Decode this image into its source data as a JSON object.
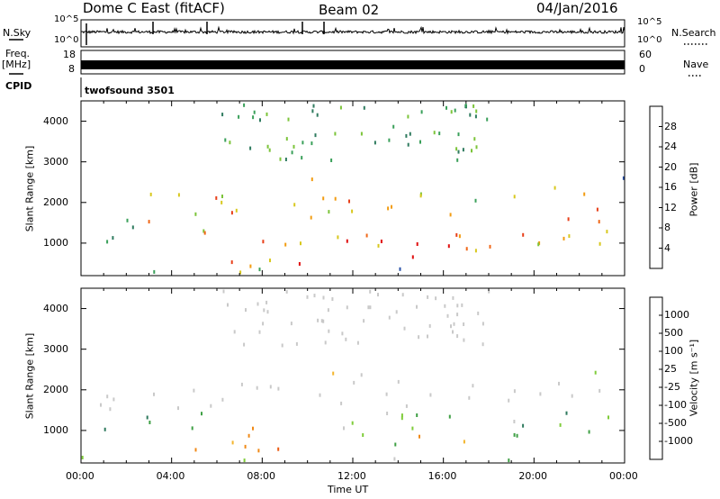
{
  "header": {
    "title": "Dome C East (fitACF)",
    "beam": "Beam 02",
    "date": "04/Jan/2016"
  },
  "status_panels": {
    "nsky_label": "N.Sky",
    "nsearch_label": "N.Search",
    "noise_ticks_left": [
      "10^5",
      "10^0"
    ],
    "noise_ticks_right": [
      "10^5",
      "10^0"
    ],
    "freq_label_line1": "Freq.",
    "freq_label_line2": "[MHz]",
    "freq_ticks": [
      "18",
      "8"
    ],
    "nave_label": "Nave",
    "nave_ticks": [
      "60",
      "0"
    ],
    "cpid_label": "CPID",
    "cpid_value": "twofsound 3501"
  },
  "colors": {
    "power_scale": [
      "#1a1ad6",
      "#2a52a8",
      "#2f7b5f",
      "#3aa05a",
      "#7cc43a",
      "#d8c81e",
      "#f29c12",
      "#f06818",
      "#e8401a",
      "#e01010"
    ],
    "velocity_scale": [
      "#2440c8",
      "#2f5a9a",
      "#2f7a5e",
      "#3fa045",
      "#7fcc3a",
      "#c9c9c9",
      "#f3b52c",
      "#f08a18",
      "#ec5c14",
      "#e21414"
    ]
  },
  "chart_data": [
    {
      "type": "heatmap",
      "name": "Power",
      "ylabel": "Slant Range [km]",
      "yticks": [
        "1000",
        "2000",
        "3000",
        "4000"
      ],
      "ylim": [
        200,
        4500
      ],
      "xlim": [
        0,
        24
      ],
      "colorbar_label": "Power [dB]",
      "colorbar_ticks": [
        "28",
        "24",
        "20",
        "16",
        "12",
        "8",
        "4"
      ],
      "colorbar_range": [
        0,
        32
      ]
    },
    {
      "type": "heatmap",
      "name": "Velocity",
      "ylabel": "Slant Range [km]",
      "yticks": [
        "1000",
        "2000",
        "3000",
        "4000"
      ],
      "ylim": [
        200,
        4500
      ],
      "xlim": [
        0,
        24
      ],
      "xlabel": "Time UT",
      "xticks": [
        "00:00",
        "04:00",
        "08:00",
        "12:00",
        "16:00",
        "20:00",
        "00:00"
      ],
      "colorbar_label": "Velocity [m s⁻¹]",
      "colorbar_ticks": [
        "1000",
        "500",
        "100",
        "25",
        "-25",
        "-100",
        "-500",
        "-1000"
      ]
    }
  ]
}
